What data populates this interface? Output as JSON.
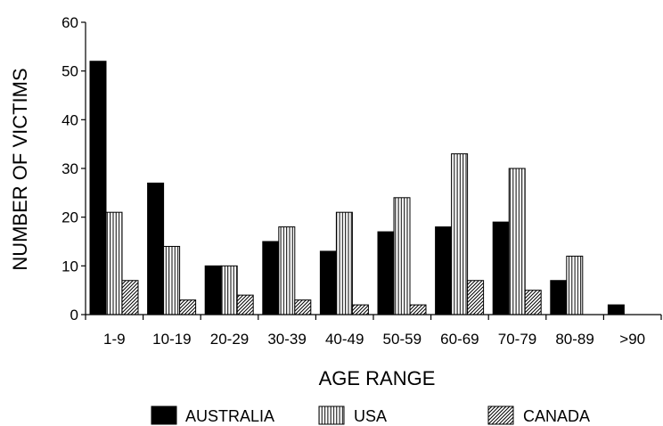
{
  "chart_data": {
    "type": "bar",
    "title": "",
    "xlabel": "AGE RANGE",
    "ylabel": "NUMBER OF VICTIMS",
    "ylim": [
      0,
      60
    ],
    "yticks": [
      "0",
      "10",
      "20",
      "30",
      "40",
      "50",
      "60"
    ],
    "categories": [
      "1-9",
      "10-19",
      "20-29",
      "30-39",
      "40-49",
      "50-59",
      "60-69",
      "70-79",
      "80-89",
      ">90"
    ],
    "series": [
      {
        "name": "AUSTRALIA",
        "pattern": "solid",
        "color": "#000000",
        "values": [
          52,
          27,
          10,
          15,
          13,
          17,
          18,
          19,
          7,
          2
        ]
      },
      {
        "name": "USA",
        "pattern": "vertical-stripes",
        "color": "#000000",
        "values": [
          21,
          14,
          10,
          18,
          21,
          24,
          33,
          30,
          12,
          0
        ]
      },
      {
        "name": "CANADA",
        "pattern": "diagonal-hatch",
        "color": "#000000",
        "values": [
          7,
          3,
          4,
          3,
          2,
          2,
          7,
          5,
          0,
          0
        ]
      }
    ],
    "grid": false,
    "legend_position": "bottom"
  }
}
